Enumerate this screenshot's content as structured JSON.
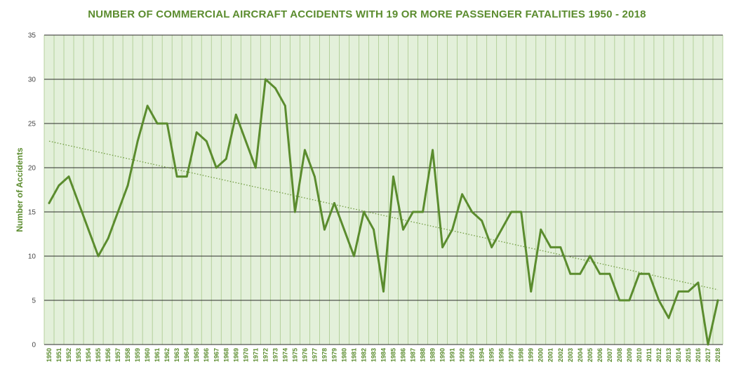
{
  "chart_data": {
    "type": "line",
    "title": "NUMBER OF COMMERCIAL AIRCRAFT ACCIDENTS WITH 19 OR MORE  PASSENGER FATALITIES  1950 - 2018",
    "xlabel": "",
    "ylabel": "Number of Accidents",
    "ylim": [
      0,
      35
    ],
    "yticks": [
      0,
      5,
      10,
      15,
      20,
      25,
      30,
      35
    ],
    "grid": true,
    "legend": "none",
    "colors": {
      "line": "#5b8c2e",
      "trend": "#6f9a3f",
      "plot_bg": "#e3f0da",
      "grid_major": "#2b2b2b",
      "grid_minor": "#a9c98c",
      "text": "#5b8c2e"
    },
    "categories": [
      "1950",
      "1951",
      "1952",
      "1953",
      "1954",
      "1955",
      "1956",
      "1957",
      "1958",
      "1959",
      "1960",
      "1961",
      "1962",
      "1963",
      "1964",
      "1965",
      "1966",
      "1967",
      "1968",
      "1969",
      "1970",
      "1971",
      "1972",
      "1973",
      "1974",
      "1975",
      "1976",
      "1977",
      "1978",
      "1979",
      "1980",
      "1981",
      "1982",
      "1983",
      "1984",
      "1985",
      "1986",
      "1987",
      "1988",
      "1989",
      "1990",
      "1991",
      "1992",
      "1993",
      "1994",
      "1995",
      "1996",
      "1997",
      "1998",
      "1999",
      "2000",
      "2001",
      "2002",
      "2003",
      "2004",
      "2005",
      "2006",
      "2007",
      "2008",
      "2009",
      "2010",
      "2011",
      "2012",
      "2013",
      "2014",
      "2015",
      "2016",
      "2017",
      "2018"
    ],
    "series": [
      {
        "values": [
          16,
          18,
          19,
          16,
          13,
          10,
          12,
          15,
          18,
          23,
          27,
          25,
          25,
          19,
          19,
          24,
          23,
          20,
          21,
          26,
          23,
          20,
          30,
          29,
          27,
          15,
          22,
          19,
          13,
          16,
          13,
          10,
          15,
          13,
          6,
          19,
          13,
          15,
          15,
          22,
          11,
          13,
          17,
          15,
          14,
          11,
          13,
          15,
          15,
          6,
          13,
          11,
          11,
          8,
          8,
          10,
          8,
          8,
          5,
          5,
          8,
          8,
          5,
          3,
          6,
          6,
          7,
          0,
          5
        ]
      }
    ],
    "trendline": {
      "type": "linear",
      "start": 23,
      "end": 6.2
    }
  }
}
